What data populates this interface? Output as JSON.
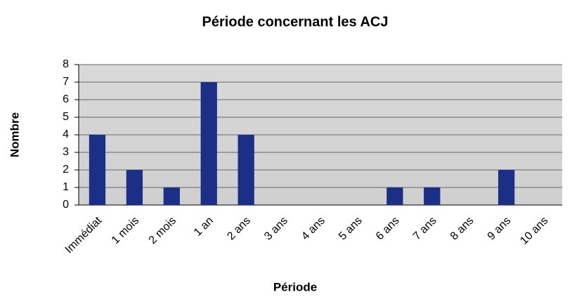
{
  "chart_data": {
    "type": "bar",
    "title": "Période concernant les ACJ",
    "x_label": "Période",
    "y_label": "Nombre",
    "categories": [
      "Immédiat",
      "1 mois",
      "2 mois",
      "1 an",
      "2 ans",
      "3 ans",
      "4 ans",
      "5 ans",
      "6 ans",
      "7 ans",
      "8 ans",
      "9 ans",
      "10 ans"
    ],
    "values": [
      4,
      2,
      1,
      7,
      4,
      0,
      0,
      0,
      1,
      1,
      0,
      2,
      0
    ],
    "color": "#1c2f86",
    "ylim": [
      0,
      8
    ],
    "yticks": [
      0,
      1,
      2,
      3,
      4,
      5,
      6,
      7,
      8
    ],
    "grid": true
  }
}
